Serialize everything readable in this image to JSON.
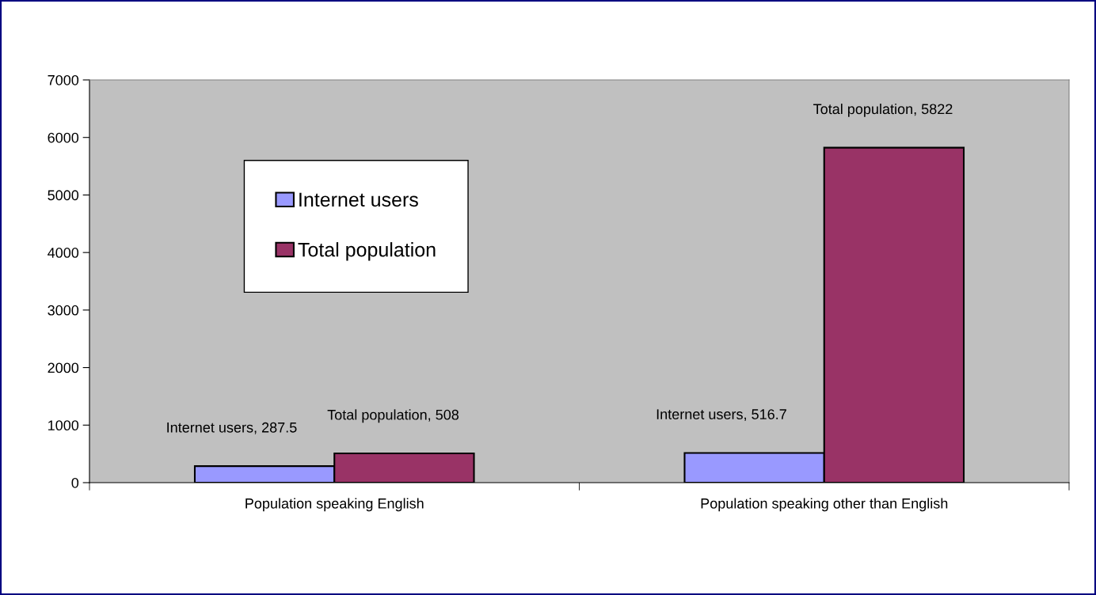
{
  "chart_data": {
    "type": "bar",
    "categories": [
      "Population speaking English",
      "Population speaking other than English"
    ],
    "series": [
      {
        "name": "Internet users",
        "color": "#9999ff",
        "values": [
          287.5,
          516.7
        ],
        "value_labels": [
          "Internet users, 287.5",
          "Internet users, 516.7"
        ]
      },
      {
        "name": "Total population",
        "color": "#993366",
        "values": [
          508,
          5822
        ],
        "value_labels": [
          "Total population, 508",
          "Total population, 5822"
        ]
      }
    ],
    "ylim": [
      0,
      7000
    ],
    "yticks": [
      0,
      1000,
      2000,
      3000,
      4000,
      5000,
      6000,
      7000
    ],
    "grid": false,
    "legend": "top left"
  }
}
